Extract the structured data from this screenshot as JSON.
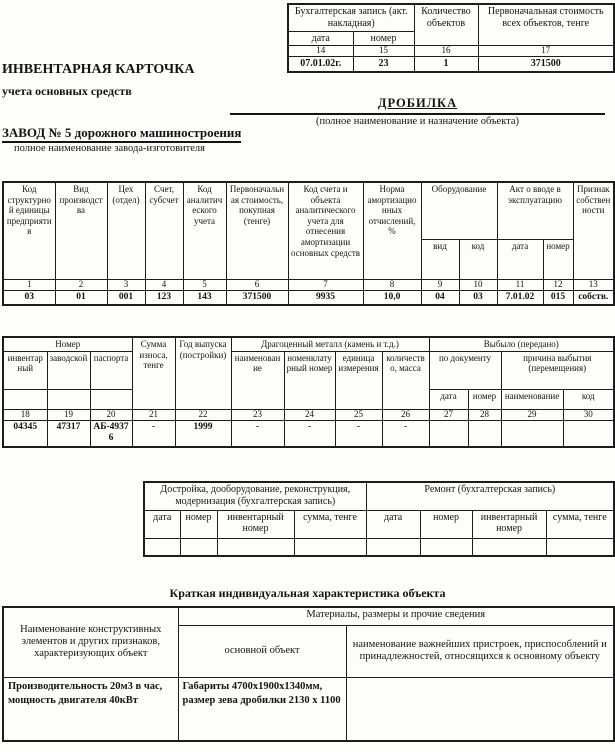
{
  "top_table": {
    "entry_group": "Бухгалтерская запись (акт. накладная)",
    "date_label": "дата",
    "number_label": "номер",
    "quantity_header": "Количество объектов",
    "cost_header": "Первоначальная стоимость всех объектов, тенге",
    "nums": [
      "14",
      "15",
      "16",
      "17"
    ],
    "values": [
      "07.01.02г.",
      "23",
      "1",
      "371500"
    ]
  },
  "header": {
    "card_title": "ИНВЕНТАРНАЯ КАРТОЧКА",
    "card_subtitle": "учета основных средств",
    "object_name": "ДРОБИЛКА",
    "object_caption": "(полное наименование и назначение объекта)",
    "manufacturer": "ЗАВОД № 5 дорожного машиностроения",
    "manufacturer_caption": "полное наименование завода-изготовителя"
  },
  "main_table": {
    "col1": "Код структурной единицы предприятия",
    "col2": "Вид производства",
    "col3": "Цех (отдел)",
    "col4": "Счет, субсчет",
    "col5": "Код аналитического учета",
    "col6": "Первоначальная стоимость, покупная (тенге)",
    "col7": "Код счета и объекта аналитического учета для отнесения амортизации основных средств",
    "col8": "Норма амортизационных отчислений, %",
    "equipment_group": "Оборудование",
    "equipment_type": "вид",
    "equipment_code": "код",
    "commissioning_group": "Акт о вводе в эксплуатацию",
    "commissioning_date": "дата",
    "commissioning_number": "номер",
    "col13": "Признак собственности",
    "nums": [
      "1",
      "2",
      "3",
      "4",
      "5",
      "6",
      "7",
      "8",
      "9",
      "10",
      "11",
      "12",
      "13"
    ],
    "values": [
      "03",
      "01",
      "001",
      "123",
      "143",
      "371500",
      "9935",
      "10,0",
      "04",
      "03",
      "7.01.02",
      "015",
      "собств."
    ]
  },
  "second_table": {
    "number_group": "Номер",
    "inventory_label": "инвентарный",
    "factory_label": "заводской",
    "passport_label": "паспорта",
    "wear_sum": "Сумма износа, тенге",
    "year": "Год выпуска (постройки)",
    "precious_group": "Драгоценный металл (камень и т.д.)",
    "precious_name": "наименование",
    "precious_nomenclature": "номенклатурный номер",
    "precious_unit": "единица измерения",
    "precious_quantity": "количество, масса",
    "disposal_group": "Выбыло (передано)",
    "by_document": "по документу",
    "doc_date": "дата",
    "doc_number": "номер",
    "reason_group": "причина выбытия (перемещения)",
    "reason_name": "наименование",
    "reason_code": "код",
    "nums": [
      "18",
      "19",
      "20",
      "21",
      "22",
      "23",
      "24",
      "25",
      "26",
      "27",
      "28",
      "29",
      "30"
    ],
    "values": [
      "04345",
      "47317",
      "АБ-49376",
      "-",
      "1999",
      "-",
      "-",
      "-",
      "-",
      "",
      "",
      "",
      ""
    ]
  },
  "third_table": {
    "left_group": "Достройка, дооборудование, реконструкция, модернизация (бухгалтерская запись)",
    "right_group": "Ремонт (бухгалтерская запись)",
    "cols": [
      "дата",
      "номер",
      "инвентарный номер",
      "сумма, тенге",
      "дата",
      "номер",
      "инвентарный номер",
      "сумма, тенге"
    ]
  },
  "characteristics": {
    "title": "Краткая индивидуальная характеристика объекта",
    "col_elements": "Наименование конструктивных элементов и других признаков, характеризующих объект",
    "col_materials_group": "Материалы, размеры и прочие сведения",
    "col_main_object": "основной объект",
    "col_accessories": "наименование важнейших пристроек, приспособлений и принадлежностей, относящихся к основному объекту",
    "row": {
      "elements": "Производительность 20м3 в час, мощность двигателя 40кВт",
      "main_object": "Габариты 4700х1900х1340мм, размер зева дробилки 2130 х 1100",
      "accessories": ""
    }
  }
}
